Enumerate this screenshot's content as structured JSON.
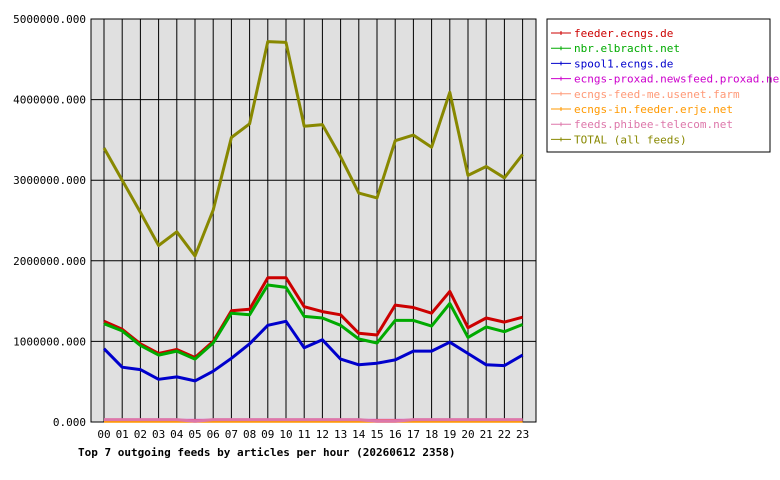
{
  "chart_data": {
    "type": "line",
    "title": "Top 7 outgoing feeds by articles per hour (20260612 2358)",
    "xlabel": "",
    "ylabel": "",
    "categories": [
      "00",
      "01",
      "02",
      "03",
      "04",
      "05",
      "06",
      "07",
      "08",
      "09",
      "10",
      "11",
      "12",
      "13",
      "14",
      "15",
      "16",
      "17",
      "18",
      "19",
      "20",
      "21",
      "22",
      "23"
    ],
    "y_ticks": [
      "0.000",
      "1000000.000",
      "2000000.000",
      "3000000.000",
      "4000000.000",
      "5000000.000"
    ],
    "ylim": [
      0,
      5000000
    ],
    "grid": true,
    "legend_position": "right",
    "colors": {
      "plot_bg": "#e0e0e0",
      "grid": "#000000"
    },
    "series": [
      {
        "name": "feeder.ecngs.de",
        "color": "#cc0000",
        "values": [
          1250000,
          1150000,
          970000,
          850000,
          900000,
          800000,
          1000000,
          1380000,
          1400000,
          1790000,
          1790000,
          1430000,
          1370000,
          1330000,
          1100000,
          1080000,
          1450000,
          1420000,
          1350000,
          1620000,
          1170000,
          1290000,
          1240000,
          1300000
        ]
      },
      {
        "name": "nbr.elbracht.net",
        "color": "#00aa00",
        "values": [
          1220000,
          1130000,
          950000,
          830000,
          880000,
          780000,
          980000,
          1350000,
          1330000,
          1700000,
          1670000,
          1310000,
          1290000,
          1200000,
          1030000,
          980000,
          1260000,
          1260000,
          1190000,
          1470000,
          1050000,
          1180000,
          1120000,
          1210000
        ]
      },
      {
        "name": "spool1.ecngs.de",
        "color": "#0000cc",
        "values": [
          910000,
          680000,
          650000,
          530000,
          560000,
          510000,
          630000,
          790000,
          970000,
          1200000,
          1250000,
          920000,
          1020000,
          780000,
          710000,
          730000,
          770000,
          880000,
          880000,
          990000,
          850000,
          710000,
          700000,
          830000
        ]
      },
      {
        "name": "ecngs-proxad.newsfeed.proxad.net",
        "color": "#cc00cc",
        "values": [
          20000,
          20000,
          20000,
          20000,
          20000,
          20000,
          20000,
          20000,
          20000,
          20000,
          20000,
          20000,
          20000,
          20000,
          20000,
          20000,
          20000,
          20000,
          20000,
          20000,
          20000,
          20000,
          20000,
          20000
        ]
      },
      {
        "name": "ecngs-feed-me.usenet.farm",
        "color": "#ff9977",
        "values": [
          15000,
          15000,
          15000,
          15000,
          15000,
          15000,
          15000,
          15000,
          15000,
          15000,
          15000,
          15000,
          15000,
          15000,
          15000,
          15000,
          15000,
          15000,
          15000,
          15000,
          15000,
          15000,
          15000,
          15000
        ]
      },
      {
        "name": "ecngs-in.feeder.erje.net",
        "color": "#ff9900",
        "values": [
          10000,
          10000,
          10000,
          10000,
          10000,
          10000,
          10000,
          10000,
          10000,
          10000,
          10000,
          10000,
          10000,
          10000,
          10000,
          10000,
          10000,
          10000,
          10000,
          10000,
          10000,
          10000,
          10000,
          10000
        ]
      },
      {
        "name": "feeds.phibee-telecom.net",
        "color": "#dd77aa",
        "values": [
          30000,
          30000,
          30000,
          30000,
          30000,
          10000,
          30000,
          30000,
          30000,
          30000,
          30000,
          30000,
          30000,
          30000,
          30000,
          10000,
          10000,
          30000,
          30000,
          30000,
          30000,
          30000,
          30000,
          30000
        ]
      },
      {
        "name": "TOTAL (all feeds)",
        "color": "#888800",
        "values": [
          3400000,
          3000000,
          2600000,
          2190000,
          2360000,
          2060000,
          2630000,
          3530000,
          3700000,
          4720000,
          4710000,
          3670000,
          3690000,
          3290000,
          2840000,
          2780000,
          3490000,
          3560000,
          3410000,
          4090000,
          3060000,
          3170000,
          3030000,
          3320000
        ]
      }
    ]
  }
}
